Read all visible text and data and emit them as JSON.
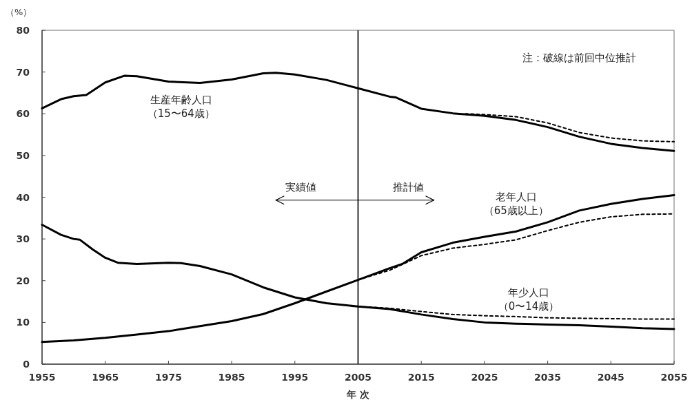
{
  "chart_data": {
    "type": "line",
    "xlabel": "年 次",
    "ylabel": "（%）",
    "xlim": [
      1955,
      2055
    ],
    "xticks": [
      1955,
      1965,
      1975,
      1985,
      1995,
      2005,
      2015,
      2025,
      2035,
      2045,
      2055
    ],
    "ylim": [
      0,
      80
    ],
    "yticks": [
      0,
      10,
      20,
      30,
      40,
      50,
      60,
      70,
      80
    ],
    "grid": false,
    "series": [
      {
        "name": "生産年齢人口（15〜64歳）",
        "color": "#000000",
        "line_style": "solid",
        "x": [
          1955,
          1958,
          1960,
          1962,
          1965,
          1968,
          1970,
          1975,
          1980,
          1985,
          1990,
          1992,
          1995,
          2000,
          2005,
          2010,
          2011,
          2015,
          2020,
          2025,
          2030,
          2035,
          2040,
          2045,
          2050,
          2055
        ],
        "values": [
          61.3,
          63.5,
          64.2,
          64.5,
          67.5,
          69.1,
          69.0,
          67.7,
          67.4,
          68.2,
          69.7,
          69.8,
          69.4,
          68.1,
          66.1,
          64.1,
          63.9,
          61.2,
          60.1,
          59.5,
          58.5,
          56.8,
          54.5,
          52.8,
          51.8,
          51.1
        ]
      },
      {
        "name": "老年人口（65歳以上）",
        "color": "#000000",
        "line_style": "solid",
        "x": [
          1955,
          1960,
          1965,
          1970,
          1975,
          1980,
          1985,
          1990,
          1995,
          2000,
          2005,
          2010,
          2012,
          2015,
          2020,
          2025,
          2030,
          2035,
          2040,
          2045,
          2050,
          2055
        ],
        "values": [
          5.3,
          5.7,
          6.3,
          7.1,
          7.9,
          9.1,
          10.3,
          12.0,
          14.6,
          17.4,
          20.2,
          23.0,
          24.0,
          26.8,
          29.1,
          30.5,
          31.8,
          34.0,
          36.8,
          38.4,
          39.6,
          40.5
        ]
      },
      {
        "name": "年少人口（0〜14歳）",
        "color": "#000000",
        "line_style": "solid",
        "x": [
          1955,
          1958,
          1960,
          1961,
          1963,
          1965,
          1967,
          1970,
          1975,
          1977,
          1980,
          1985,
          1990,
          1995,
          2000,
          2005,
          2010,
          2015,
          2020,
          2025,
          2030,
          2035,
          2040,
          2045,
          2050,
          2055
        ],
        "values": [
          33.4,
          31.0,
          30.0,
          29.8,
          27.5,
          25.5,
          24.3,
          24.0,
          24.3,
          24.2,
          23.5,
          21.5,
          18.4,
          16.0,
          14.6,
          13.8,
          13.2,
          11.9,
          10.8,
          10.0,
          9.7,
          9.5,
          9.3,
          9.0,
          8.6,
          8.4
        ]
      },
      {
        "color": "#000000",
        "line_style": "dashed",
        "x": [
          2022,
          2025,
          2030,
          2035,
          2040,
          2045,
          2050,
          2055
        ],
        "values": [
          60.0,
          59.8,
          59.3,
          57.8,
          55.5,
          54.2,
          53.5,
          53.3
        ]
      },
      {
        "color": "#000000",
        "line_style": "dashed",
        "x": [
          2005,
          2010,
          2015,
          2020,
          2025,
          2030,
          2035,
          2040,
          2045,
          2050,
          2055
        ],
        "values": [
          20.2,
          22.5,
          26.0,
          27.8,
          28.7,
          29.8,
          32.0,
          34.0,
          35.3,
          35.9,
          36.0
        ]
      },
      {
        "color": "#000000",
        "line_style": "dashed",
        "x": [
          2005,
          2010,
          2015,
          2020,
          2025,
          2030,
          2035,
          2040,
          2045,
          2050,
          2055
        ],
        "values": [
          13.8,
          13.4,
          12.6,
          11.9,
          11.6,
          11.4,
          11.1,
          11.0,
          10.9,
          10.8,
          10.8
        ]
      }
    ],
    "ref_lines": [
      {
        "axis": "x",
        "value": 2005,
        "color": "#333333"
      }
    ],
    "annotations": [
      "注：破線は前回中位推計",
      "実績値",
      "推計値"
    ]
  }
}
